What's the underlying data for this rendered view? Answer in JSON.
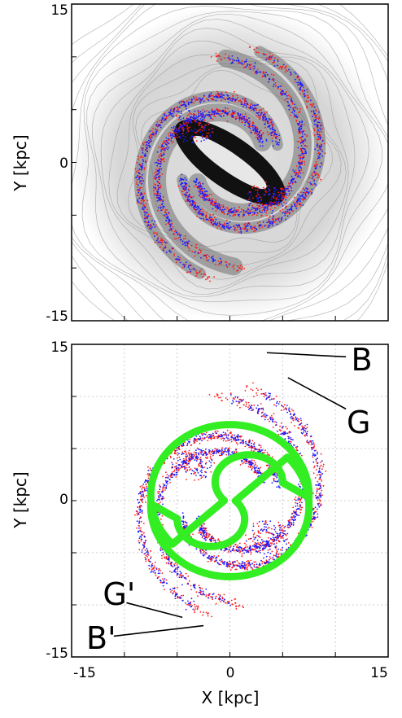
{
  "chart_data": [
    {
      "type": "scatter",
      "panel": "top",
      "background": "grayscale density contour map",
      "xlim": [
        -15,
        15
      ],
      "ylim": [
        -15,
        15
      ],
      "ylabel": "Y [kpc]",
      "xlabel": "",
      "yticks": [
        "15",
        "0",
        "-15"
      ],
      "grid": false,
      "series": [
        {
          "color": "#ff1a1a",
          "marker": "dots"
        },
        {
          "color": "#1a1aff",
          "marker": "dots"
        }
      ]
    },
    {
      "type": "scatter",
      "panel": "bottom",
      "xlim": [
        -15,
        15
      ],
      "ylim": [
        -15,
        15
      ],
      "xlabel": "X [kpc]",
      "ylabel": "Y [kpc]",
      "xticks": [
        "-15",
        "0",
        "15"
      ],
      "yticks": [
        "15",
        "0",
        "-15"
      ],
      "grid": true,
      "series": [
        {
          "color": "#ff1a1a",
          "marker": "dots"
        },
        {
          "color": "#1a1aff",
          "marker": "dots"
        },
        {
          "color": "#33ee22",
          "marker": "thick curve"
        }
      ],
      "annotations": [
        {
          "text": "B",
          "x": 12.5,
          "y": 13.5
        },
        {
          "text": "G",
          "x": 12.2,
          "y": 7.5
        },
        {
          "text": "G'",
          "x": -10.5,
          "y": -9.0
        },
        {
          "text": "B'",
          "x": -12.2,
          "y": -13.2
        }
      ]
    }
  ]
}
